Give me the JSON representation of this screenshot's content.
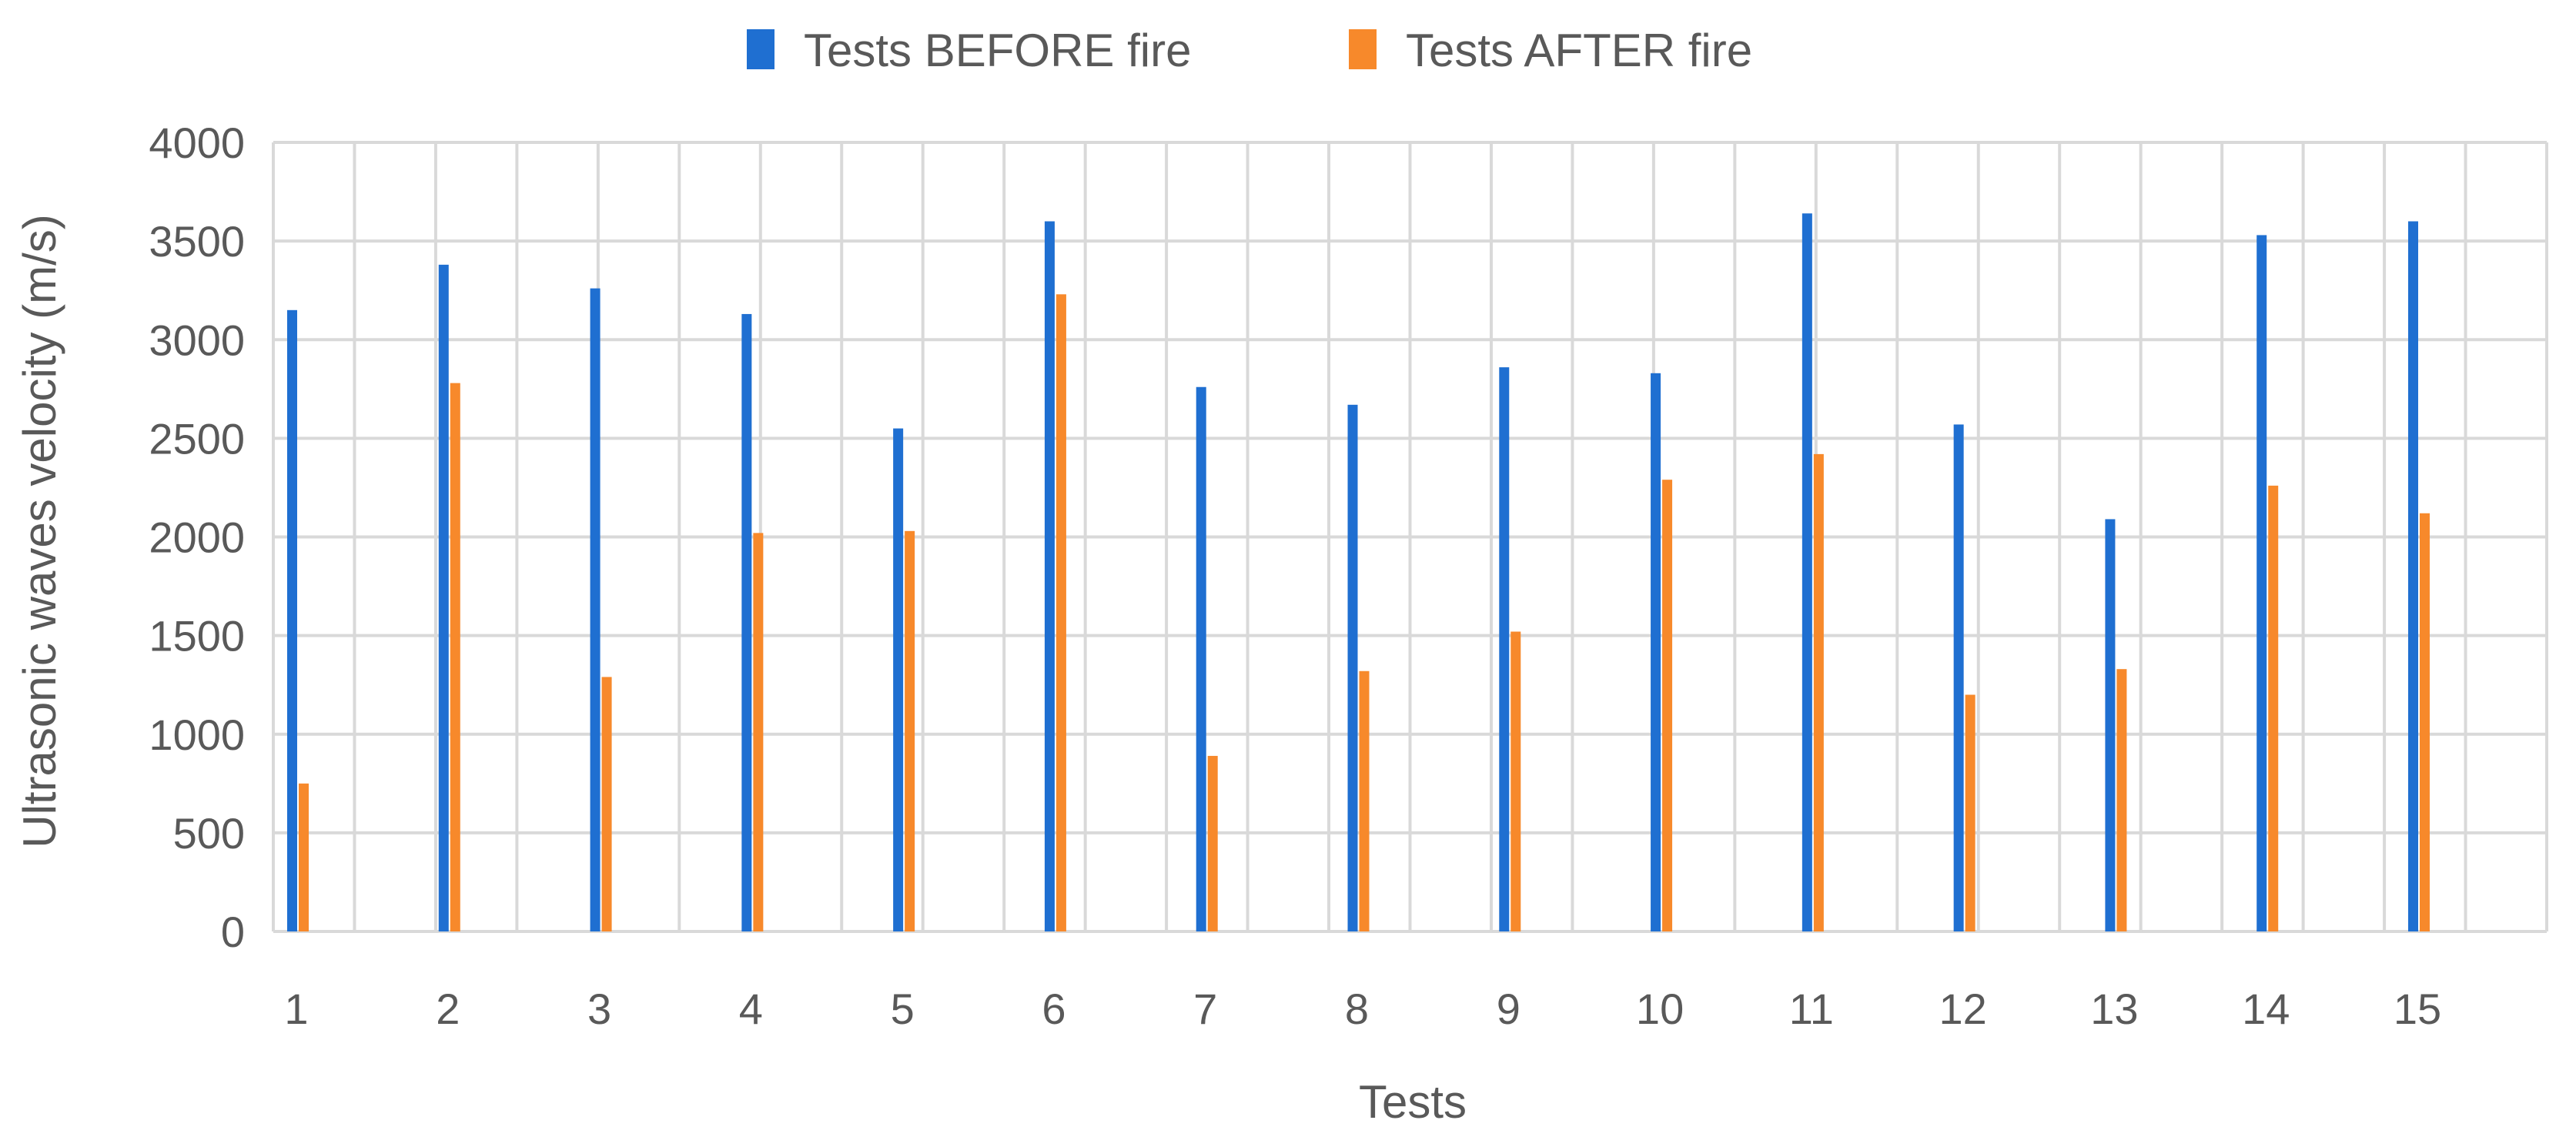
{
  "chart_data": {
    "type": "bar",
    "title": "",
    "xlabel": "Tests",
    "ylabel": "Ultrasonic waves velocity (m/s)",
    "ylim": [
      0,
      4000
    ],
    "yticks": [
      0,
      500,
      1000,
      1500,
      2000,
      2500,
      3000,
      3500,
      4000
    ],
    "categories": [
      "1",
      "2",
      "3",
      "4",
      "5",
      "6",
      "7",
      "8",
      "9",
      "10",
      "11",
      "12",
      "13",
      "14",
      "15"
    ],
    "grid": true,
    "legend_position": "top",
    "series": [
      {
        "name": "Tests BEFORE fire",
        "color": "#1f6fd1",
        "values": [
          3150,
          3380,
          3260,
          3130,
          2550,
          3600,
          2760,
          2670,
          2860,
          2830,
          3640,
          2570,
          2090,
          3530,
          3600
        ]
      },
      {
        "name": "Tests AFTER fire",
        "color": "#f7892b",
        "values": [
          750,
          2780,
          1290,
          2020,
          2030,
          3230,
          890,
          1320,
          1520,
          2290,
          2420,
          1200,
          1330,
          2260,
          2120
        ]
      }
    ]
  }
}
